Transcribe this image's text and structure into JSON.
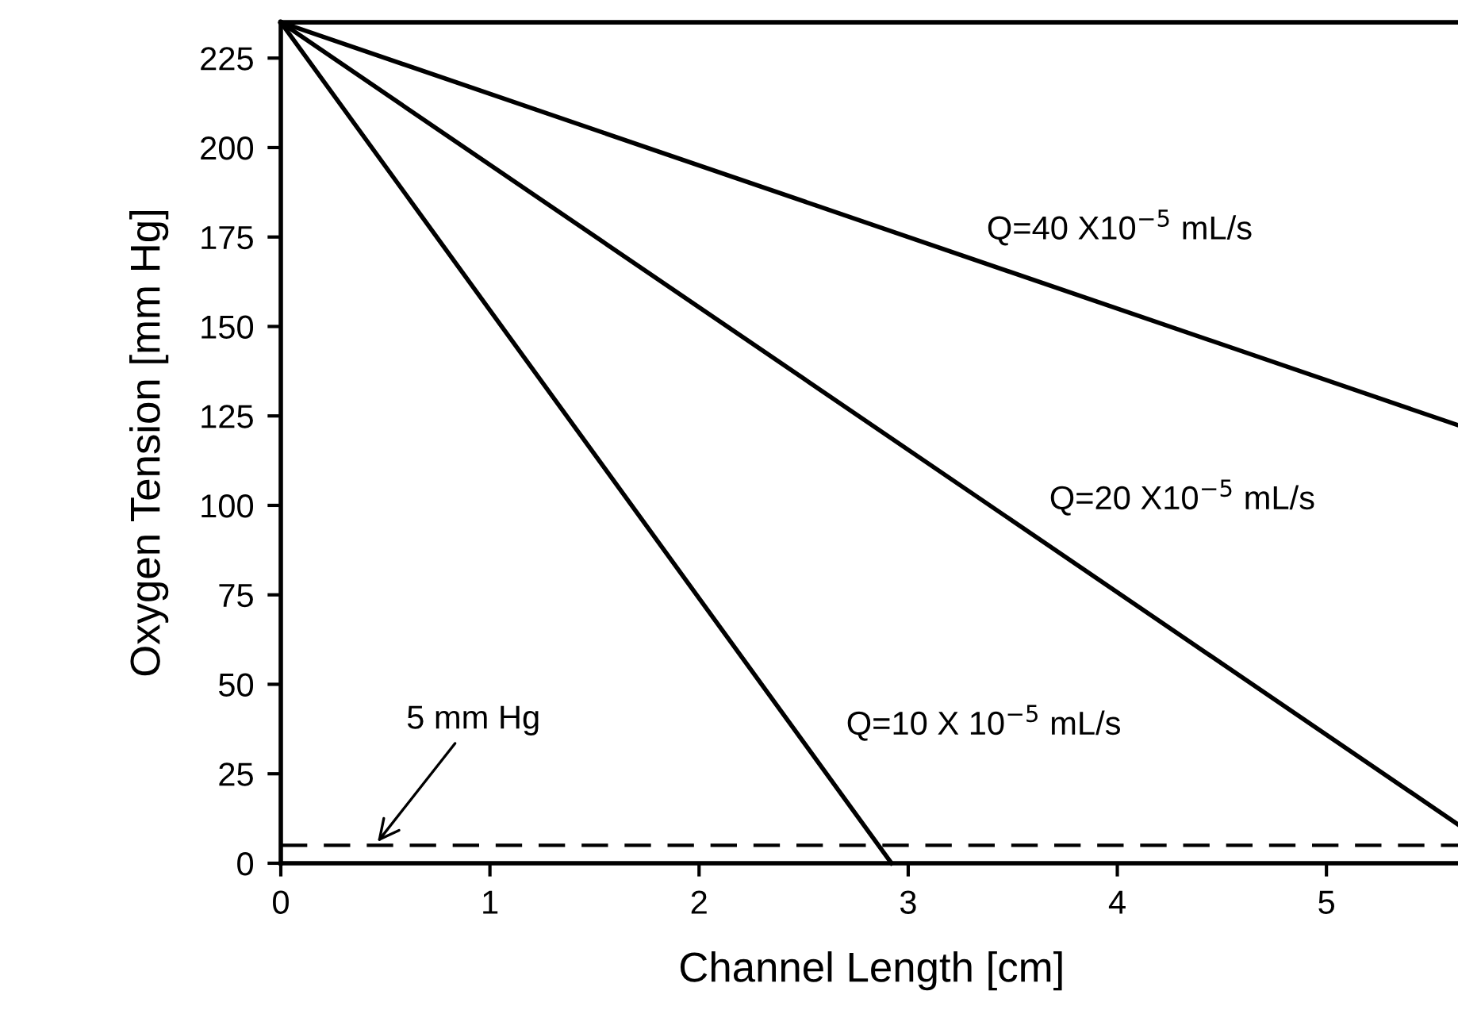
{
  "chart_data": {
    "type": "line",
    "xlabel": "Channel Length [cm]",
    "ylabel": "Oxygen Tension [mm Hg]",
    "series": [
      {
        "name": "Q=40 X10$^{−5}$ mL/s",
        "color": "#000000",
        "x": [
          0,
          5.65
        ],
        "values": [
          235,
          122
        ]
      },
      {
        "name": "Q=20 X10$^{−5}$ mL/s",
        "color": "#000000",
        "x": [
          0,
          5.65
        ],
        "values": [
          235,
          10
        ]
      },
      {
        "name": "Q=10 X 10$^{−5}$ mL/s",
        "color": "#000000",
        "x": [
          0,
          2.92
        ],
        "values": [
          235,
          0
        ]
      }
    ],
    "ref_lines": [
      {
        "axis": "y",
        "value": 5,
        "label": "5 mm Hg",
        "color": "#000000",
        "line_style": "dashed"
      }
    ],
    "xlim": [
      0,
      5.65
    ],
    "ylim": [
      0,
      235
    ],
    "xticks": [
      0,
      1,
      2,
      3,
      4,
      5
    ],
    "yticks": [
      0,
      25,
      50,
      75,
      100,
      125,
      150,
      175,
      200,
      225
    ],
    "grid": false,
    "legend": false,
    "marker": "none",
    "line_style": "solid"
  }
}
